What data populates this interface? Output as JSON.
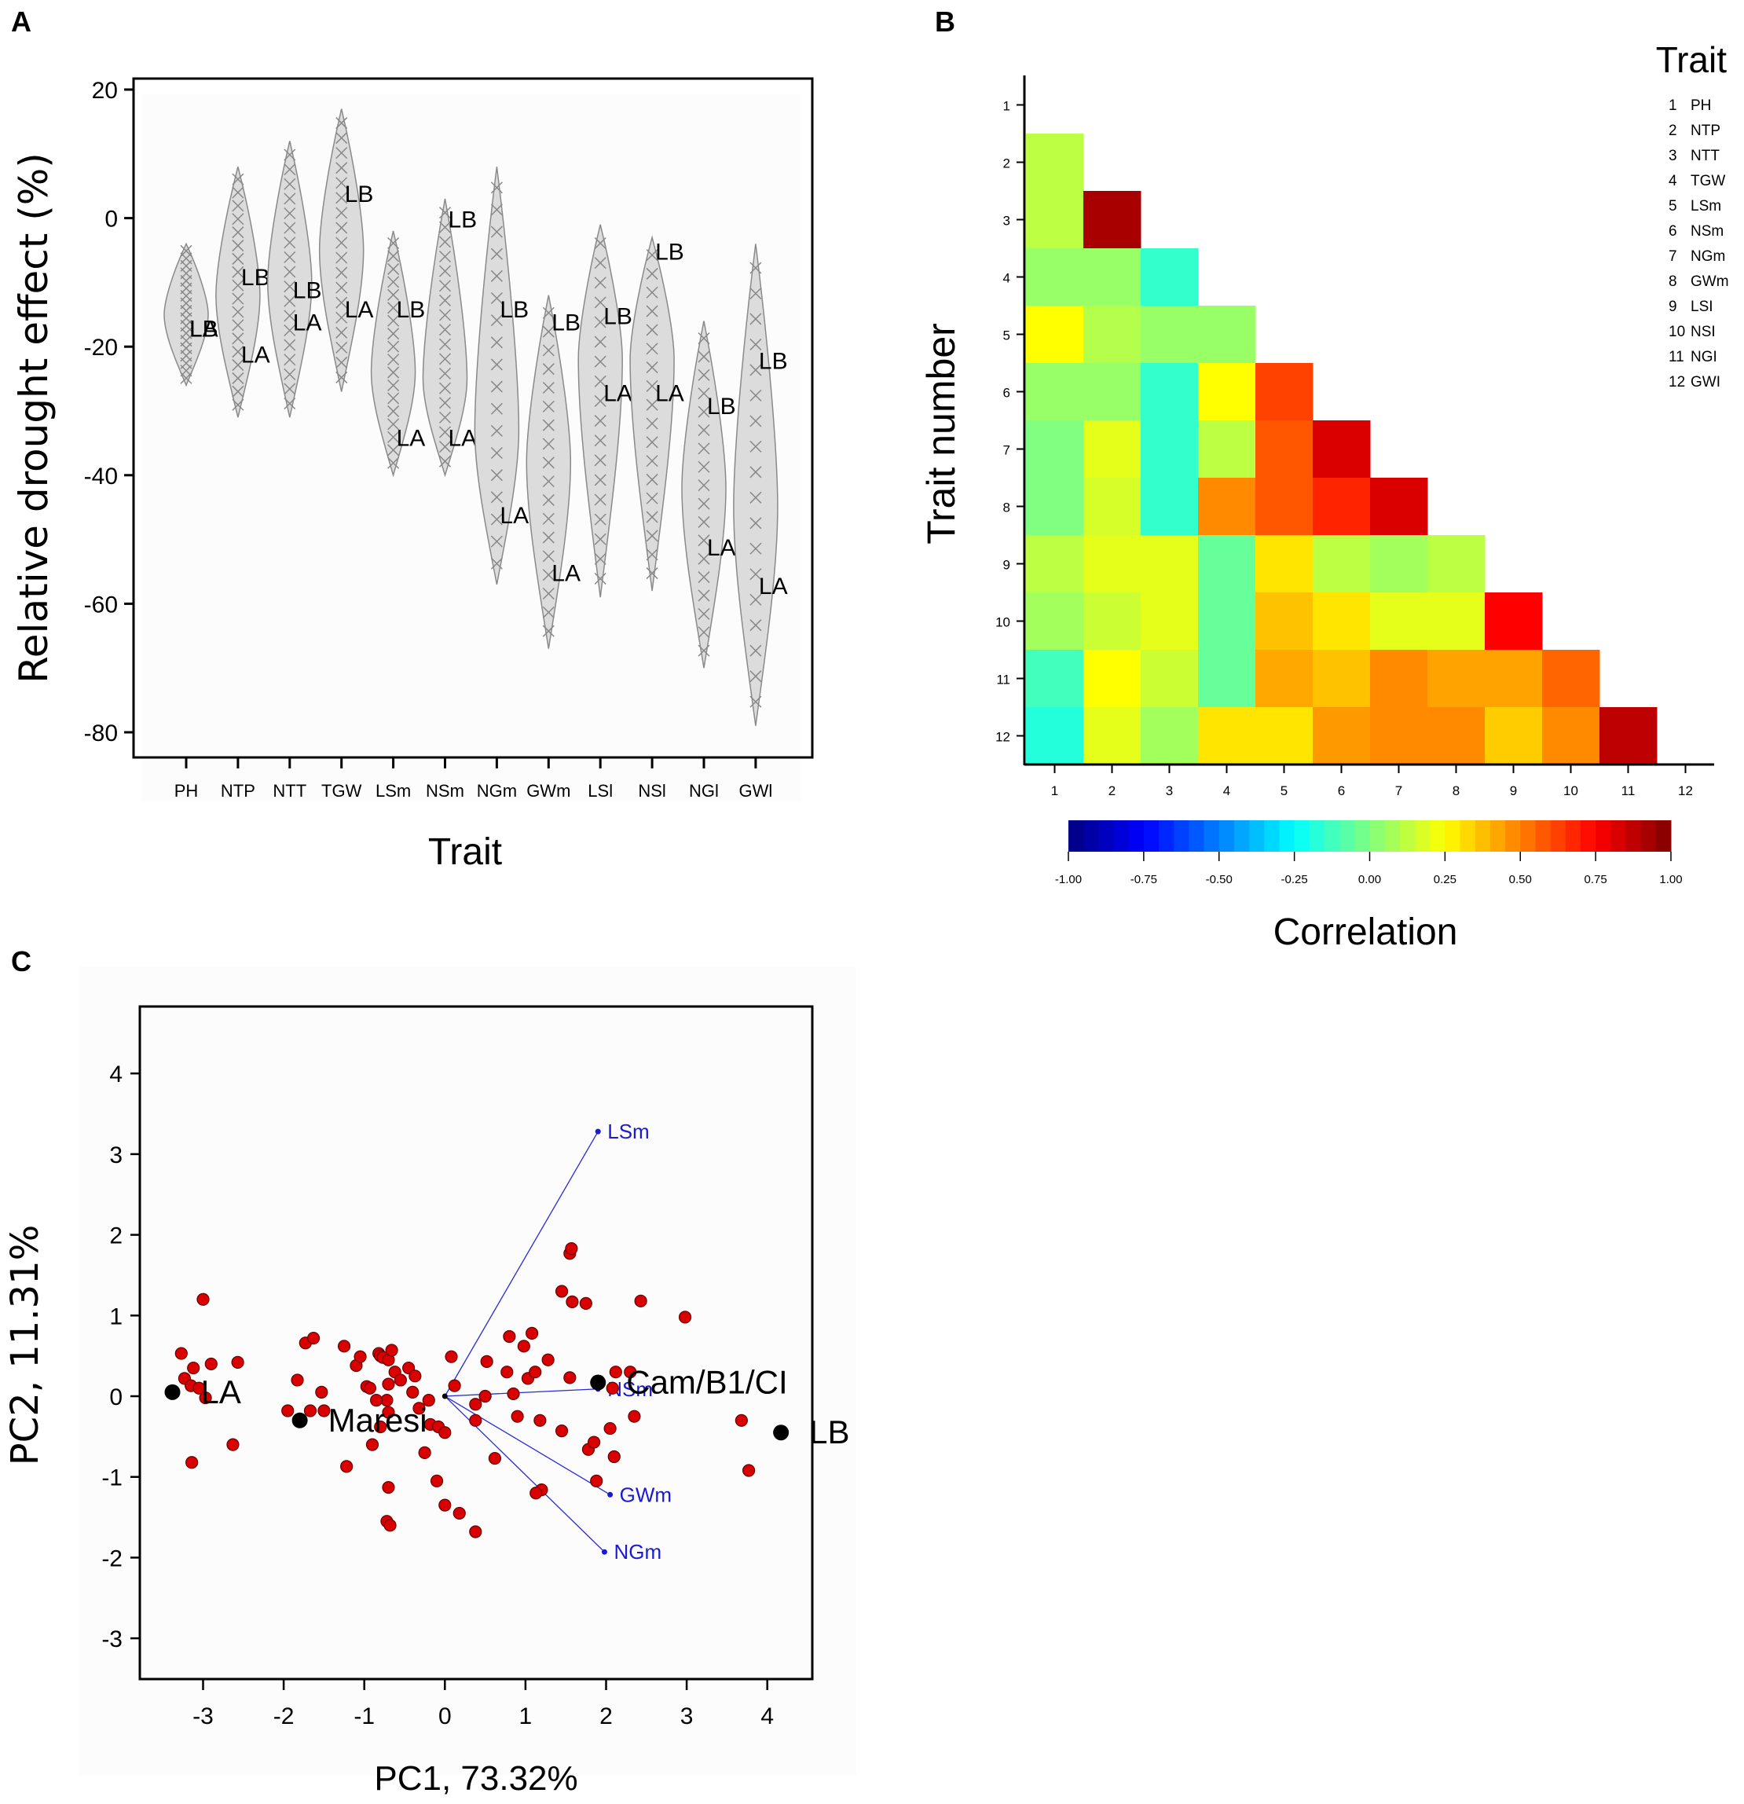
{
  "panels": {
    "a": {
      "label": "A"
    },
    "b": {
      "label": "B"
    },
    "c": {
      "label": "C"
    }
  },
  "chart_data": [
    {
      "id": "violin",
      "type": "violin",
      "title": "",
      "xlabel": "Trait",
      "ylabel": "Relative drought effect (%)",
      "ylim": [
        -85,
        22
      ],
      "yticks": [
        20,
        0,
        -20,
        -40,
        -60,
        -80
      ],
      "categories": [
        "PH",
        "NTP",
        "NTT",
        "TGW",
        "LSm",
        "NSm",
        "NGm",
        "GWm",
        "LSl",
        "NSl",
        "NGl",
        "GWl"
      ],
      "series": [
        {
          "trait": "PH",
          "min": -26,
          "max": -4,
          "median": -15,
          "LB": -17,
          "LA": -17
        },
        {
          "trait": "NTP",
          "min": -31,
          "max": 8,
          "median": -12,
          "LB": -9,
          "LA": -21
        },
        {
          "trait": "NTT",
          "min": -31,
          "max": 12,
          "median": -10,
          "LB": -11,
          "LA": -16
        },
        {
          "trait": "TGW",
          "min": -27,
          "max": 17,
          "median": -5,
          "LB": 4,
          "LA": -14
        },
        {
          "trait": "LSm",
          "min": -40,
          "max": -2,
          "median": -24,
          "LB": -14,
          "LA": -34
        },
        {
          "trait": "NSm",
          "min": -40,
          "max": 3,
          "median": -25,
          "LB": 0,
          "LA": -34
        },
        {
          "trait": "NGm",
          "min": -57,
          "max": 8,
          "median": -33,
          "LB": -14,
          "LA": -46
        },
        {
          "trait": "GWm",
          "min": -67,
          "max": -12,
          "median": -38,
          "LB": -16,
          "LA": -55
        },
        {
          "trait": "LSl",
          "min": -59,
          "max": -1,
          "median": -22,
          "LB": -15,
          "LA": -27
        },
        {
          "trait": "NSl",
          "min": -58,
          "max": -3,
          "median": -22,
          "LB": -5,
          "LA": -27
        },
        {
          "trait": "NGl",
          "min": -70,
          "max": -16,
          "median": -42,
          "LB": -29,
          "LA": -51
        },
        {
          "trait": "GWl",
          "min": -79,
          "max": -4,
          "median": -45,
          "LB": -22,
          "LA": -57
        }
      ]
    },
    {
      "id": "heatmap",
      "type": "heatmap",
      "ylabel": "Trait number",
      "xlabel": "",
      "colorbar_label": "Correlation",
      "colorbar_ticks": [
        "-1.00",
        "-0.75",
        "-0.50",
        "-0.25",
        "0.00",
        "0.25",
        "0.50",
        "0.75",
        "1.00"
      ],
      "color_range": [
        -1,
        1
      ],
      "x_ticks": [
        "1",
        "2",
        "3",
        "4",
        "5",
        "6",
        "7",
        "8",
        "9",
        "10",
        "11",
        "12"
      ],
      "y_ticks": [
        "1",
        "2",
        "3",
        "4",
        "5",
        "6",
        "7",
        "8",
        "9",
        "10",
        "11",
        "12"
      ],
      "legend_title": "Trait",
      "legend": [
        {
          "num": "1",
          "name": "PH"
        },
        {
          "num": "2",
          "name": "NTP"
        },
        {
          "num": "3",
          "name": "NTT"
        },
        {
          "num": "4",
          "name": "TGW"
        },
        {
          "num": "5",
          "name": "LSm"
        },
        {
          "num": "6",
          "name": "NSm"
        },
        {
          "num": "7",
          "name": "NGm"
        },
        {
          "num": "8",
          "name": "GWm"
        },
        {
          "num": "9",
          "name": "LSI"
        },
        {
          "num": "10",
          "name": "NSI"
        },
        {
          "num": "11",
          "name": "NGI"
        },
        {
          "num": "12",
          "name": "GWI"
        }
      ],
      "matrix_lower": [
        [],
        [
          0.12
        ],
        [
          0.12,
          0.92
        ],
        [
          0.05,
          0.05,
          -0.15
        ],
        [
          0.25,
          0.1,
          0.05,
          0.05
        ],
        [
          0.05,
          0.05,
          -0.15,
          0.25,
          0.62
        ],
        [
          0.0,
          0.2,
          -0.15,
          0.12,
          0.58,
          0.82
        ],
        [
          0.0,
          0.17,
          -0.15,
          0.48,
          0.58,
          0.68,
          0.82
        ],
        [
          0.12,
          0.2,
          0.2,
          -0.05,
          0.3,
          0.12,
          0.07,
          0.12
        ],
        [
          0.07,
          0.15,
          0.2,
          -0.05,
          0.37,
          0.3,
          0.2,
          0.2,
          0.75
        ],
        [
          -0.12,
          0.25,
          0.15,
          -0.05,
          0.42,
          0.37,
          0.48,
          0.43,
          0.43,
          0.55
        ],
        [
          -0.18,
          0.2,
          0.07,
          0.3,
          0.3,
          0.45,
          0.48,
          0.48,
          0.35,
          0.48,
          0.88
        ]
      ]
    },
    {
      "id": "pca",
      "type": "scatter",
      "xlabel": "PC1, 73.32%",
      "ylabel": "PC2, 11.31%",
      "xlim": [
        -3.8,
        4.5
      ],
      "ylim": [
        -3.6,
        4.8
      ],
      "xticks": [
        -3,
        -2,
        -1,
        0,
        1,
        2,
        3,
        4
      ],
      "yticks": [
        4,
        3,
        2,
        1,
        0,
        -1,
        -2,
        -3
      ],
      "labeled_points": [
        {
          "label": "LA",
          "x": -3.38,
          "y": 0.05
        },
        {
          "label": "Maresi",
          "x": -1.8,
          "y": -0.3
        },
        {
          "label": "Cam/B1/CI",
          "x": 1.9,
          "y": 0.17
        },
        {
          "label": "LB",
          "x": 4.17,
          "y": -0.45
        }
      ],
      "loadings": [
        {
          "label": "LSm",
          "x": 1.9,
          "y": 3.28
        },
        {
          "label": "NSm",
          "x": 1.9,
          "y": 0.09
        },
        {
          "label": "GWm",
          "x": 2.05,
          "y": -1.22
        },
        {
          "label": "NGm",
          "x": 1.98,
          "y": -1.93
        }
      ],
      "points": [
        [
          -3.27,
          0.53
        ],
        [
          -3.23,
          0.22
        ],
        [
          -3.15,
          0.13
        ],
        [
          -3.12,
          0.35
        ],
        [
          -3.0,
          1.2
        ],
        [
          -3.05,
          0.1
        ],
        [
          -2.97,
          -0.02
        ],
        [
          -2.57,
          0.42
        ],
        [
          -3.14,
          -0.82
        ],
        [
          -2.63,
          -0.6
        ],
        [
          -1.95,
          -0.18
        ],
        [
          -1.83,
          0.2
        ],
        [
          -1.73,
          0.66
        ],
        [
          -1.63,
          0.72
        ],
        [
          -1.67,
          -0.18
        ],
        [
          -1.53,
          0.05
        ],
        [
          -1.5,
          -0.18
        ],
        [
          -1.25,
          0.62
        ],
        [
          -1.22,
          -0.87
        ],
        [
          -1.1,
          0.38
        ],
        [
          -1.05,
          0.49
        ],
        [
          -0.97,
          0.12
        ],
        [
          -0.93,
          0.1
        ],
        [
          -0.82,
          0.53
        ],
        [
          -0.8,
          0.5
        ],
        [
          -0.77,
          0.48
        ],
        [
          -0.7,
          0.45
        ],
        [
          -0.66,
          0.57
        ],
        [
          -0.62,
          0.3
        ],
        [
          -0.7,
          0.15
        ],
        [
          -0.72,
          -0.05
        ],
        [
          -0.7,
          -0.2
        ],
        [
          -0.55,
          0.2
        ],
        [
          -0.45,
          0.35
        ],
        [
          -0.37,
          0.25
        ],
        [
          -0.32,
          -0.15
        ],
        [
          -0.2,
          -0.05
        ],
        [
          -0.18,
          -0.35
        ],
        [
          -0.08,
          -0.38
        ],
        [
          0.0,
          -0.45
        ],
        [
          0.08,
          0.49
        ],
        [
          0.12,
          0.13
        ],
        [
          -0.4,
          0.05
        ],
        [
          -0.25,
          -0.7
        ],
        [
          -0.85,
          -0.05
        ],
        [
          -0.8,
          -0.38
        ],
        [
          -0.9,
          -0.6
        ],
        [
          -0.7,
          -1.13
        ],
        [
          -0.72,
          -1.55
        ],
        [
          -0.68,
          -1.6
        ],
        [
          -0.1,
          -1.05
        ],
        [
          0.0,
          -1.35
        ],
        [
          0.18,
          -1.45
        ],
        [
          0.38,
          -1.68
        ],
        [
          0.38,
          -0.1
        ],
        [
          0.38,
          -0.3
        ],
        [
          0.5,
          0.0
        ],
        [
          0.52,
          0.43
        ],
        [
          0.62,
          -0.77
        ],
        [
          0.77,
          0.3
        ],
        [
          0.8,
          0.74
        ],
        [
          0.85,
          0.03
        ],
        [
          0.9,
          -0.25
        ],
        [
          0.98,
          0.62
        ],
        [
          1.03,
          0.22
        ],
        [
          1.08,
          0.78
        ],
        [
          1.12,
          0.3
        ],
        [
          1.18,
          -0.3
        ],
        [
          1.28,
          0.45
        ],
        [
          1.45,
          -0.43
        ],
        [
          1.55,
          0.23
        ],
        [
          1.55,
          1.77
        ],
        [
          1.57,
          1.83
        ],
        [
          1.45,
          1.3
        ],
        [
          1.58,
          1.17
        ],
        [
          1.75,
          1.15
        ],
        [
          1.78,
          -0.66
        ],
        [
          1.85,
          -0.57
        ],
        [
          1.88,
          -1.05
        ],
        [
          2.05,
          -0.4
        ],
        [
          2.1,
          -0.75
        ],
        [
          2.08,
          0.1
        ],
        [
          2.12,
          0.3
        ],
        [
          2.3,
          0.3
        ],
        [
          2.35,
          -0.25
        ],
        [
          2.43,
          1.18
        ],
        [
          1.2,
          -1.16
        ],
        [
          1.13,
          -1.2
        ],
        [
          2.98,
          0.98
        ],
        [
          3.68,
          -0.3
        ],
        [
          3.77,
          -0.92
        ],
        [
          -2.9,
          0.4
        ]
      ]
    }
  ]
}
